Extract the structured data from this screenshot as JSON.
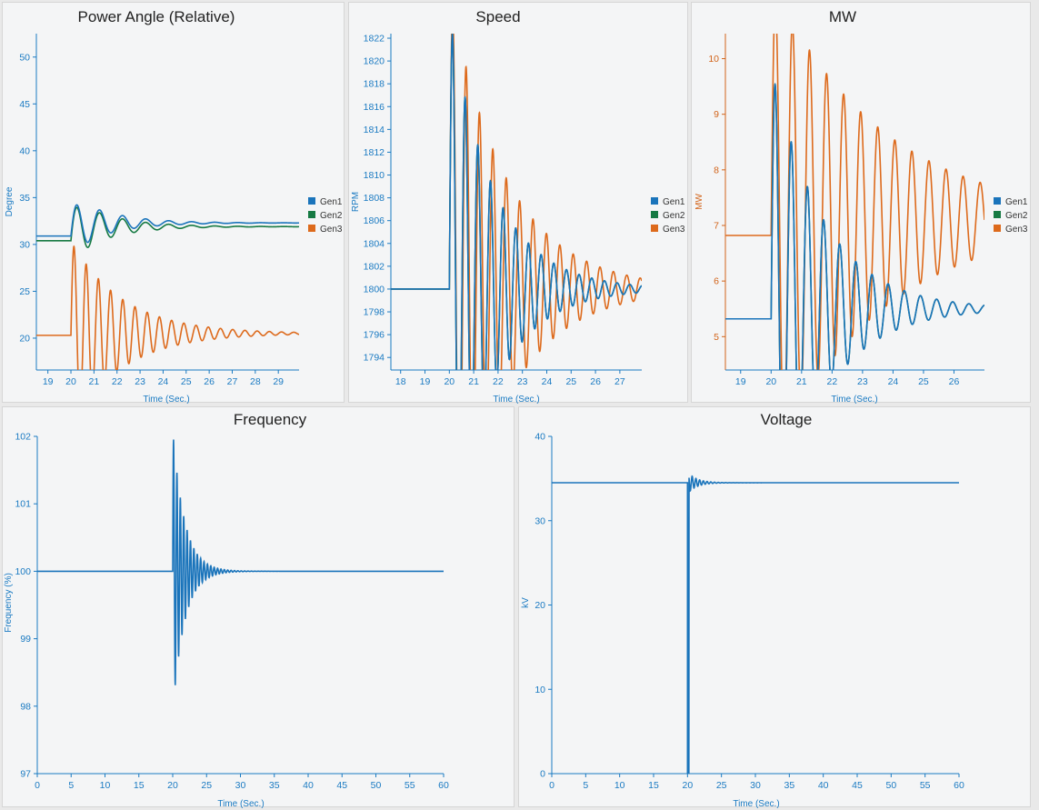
{
  "colors": {
    "gen1": "#1a74bb",
    "gen2": "#167a43",
    "gen3": "#dd6a1c",
    "axis_blue": "#1a7ac2",
    "axis_orange": "#d2641a"
  },
  "charts": {
    "power_angle": {
      "title": "Power Angle (Relative)",
      "ylabel": "Degree",
      "xlabel": "Time (Sec.)"
    },
    "speed": {
      "title": "Speed",
      "ylabel": "RPM",
      "xlabel": "Time (Sec.)"
    },
    "mw": {
      "title": "MW",
      "ylabel": "MW",
      "xlabel": "Time (Sec.)"
    },
    "frequency": {
      "title": "Frequency",
      "ylabel": "Frequency (%)",
      "xlabel": "Time (Sec.)"
    },
    "voltage": {
      "title": "Voltage",
      "ylabel": "kV",
      "xlabel": "Time (Sec.)"
    }
  },
  "chart_data": [
    {
      "id": "power_angle",
      "type": "line",
      "title": "Power Angle (Relative)",
      "xlabel": "Time (Sec.)",
      "ylabel": "Degree",
      "xlim": [
        18.5,
        29.9
      ],
      "ylim": [
        16.6,
        52.5
      ],
      "xticks": [
        19,
        20,
        21,
        22,
        23,
        24,
        25,
        26,
        27,
        28,
        29
      ],
      "yticks": [
        20,
        25,
        30,
        35,
        40,
        45,
        50
      ],
      "legend": [
        "Gen1",
        "Gen2",
        "Gen3"
      ],
      "legend_position": "right",
      "event_time": 20.0,
      "series": [
        {
          "name": "Gen1",
          "pre": 30.9,
          "post": 32.3,
          "amp": 3.0,
          "period": 1.0,
          "decay": 0.6
        },
        {
          "name": "Gen2",
          "pre": 30.4,
          "post": 31.9,
          "amp": 3.2,
          "period": 1.0,
          "decay": 0.6
        },
        {
          "name": "Gen3",
          "pre": 20.3,
          "post": 20.5,
          "amp": 10.0,
          "period": 0.53,
          "decay": 0.45
        }
      ]
    },
    {
      "id": "speed",
      "type": "line",
      "title": "Speed",
      "xlabel": "Time (Sec.)",
      "ylabel": "RPM",
      "xlim": [
        17.6,
        27.9
      ],
      "ylim": [
        1792.9,
        1822.4
      ],
      "xticks": [
        18,
        19,
        20,
        21,
        22,
        23,
        24,
        25,
        26,
        27
      ],
      "yticks": [
        1794,
        1796,
        1798,
        1800,
        1802,
        1804,
        1806,
        1808,
        1810,
        1812,
        1814,
        1816,
        1818,
        1820,
        1822
      ],
      "legend": [
        "Gen1",
        "Gen2",
        "Gen3"
      ],
      "legend_position": "right",
      "event_time": 20.0,
      "series": [
        {
          "name": "Gen1",
          "pre": 1800,
          "post": 1800,
          "amp": 24,
          "period": 0.52,
          "decay": 0.55
        },
        {
          "name": "Gen2",
          "pre": 1800,
          "post": 1800,
          "amp": 24,
          "period": 0.52,
          "decay": 0.55
        },
        {
          "name": "Gen3",
          "pre": 1800,
          "post": 1800,
          "amp": 26,
          "period": 0.55,
          "decay": 0.42
        }
      ]
    },
    {
      "id": "mw",
      "type": "line",
      "title": "MW",
      "xlabel": "Time (Sec.)",
      "ylabel": "MW",
      "xlim": [
        18.5,
        27.0
      ],
      "ylim": [
        4.4,
        10.45
      ],
      "xticks": [
        19,
        20,
        21,
        22,
        23,
        24,
        25,
        26
      ],
      "yticks": [
        5,
        6,
        7,
        8,
        9,
        10
      ],
      "legend": [
        "Gen1",
        "Gen2",
        "Gen3"
      ],
      "legend_position": "right",
      "event_time": 20.0,
      "series": [
        {
          "name": "Gen1",
          "pre": 5.32,
          "post": 5.5,
          "amp": 4.5,
          "period": 0.53,
          "decay": 0.6
        },
        {
          "name": "Gen2",
          "pre": 5.32,
          "post": 5.5,
          "amp": 4.5,
          "period": 0.53,
          "decay": 0.6
        },
        {
          "name": "Gen3",
          "pre": 6.82,
          "post": 7.1,
          "amp": 4.3,
          "period": 0.56,
          "decay": 0.27
        }
      ]
    },
    {
      "id": "frequency",
      "type": "line",
      "title": "Frequency",
      "xlabel": "Time (Sec.)",
      "ylabel": "Frequency (%)",
      "xlim": [
        0,
        60
      ],
      "ylim": [
        97,
        102
      ],
      "xticks": [
        0,
        5,
        10,
        15,
        20,
        25,
        30,
        35,
        40,
        45,
        50,
        55,
        60
      ],
      "yticks": [
        97,
        98,
        99,
        100,
        101,
        102
      ],
      "event_time": 20.0,
      "series": [
        {
          "name": "Frequency",
          "pre": 100,
          "post": 100,
          "amp": 2.1,
          "period": 0.5,
          "decay": 0.58
        }
      ]
    },
    {
      "id": "voltage",
      "type": "line",
      "title": "Voltage",
      "xlabel": "Time (Sec.)",
      "ylabel": "kV",
      "xlim": [
        0,
        60
      ],
      "ylim": [
        0,
        40
      ],
      "xticks": [
        0,
        5,
        10,
        15,
        20,
        25,
        30,
        35,
        40,
        45,
        50,
        55,
        60
      ],
      "yticks": [
        0,
        10,
        20,
        30,
        40
      ],
      "event_time": 20.0,
      "series": [
        {
          "name": "Voltage",
          "pre": 34.5,
          "post": 34.5,
          "dip": 0,
          "fault_duration": 0.2,
          "amp": 1.3,
          "period": 0.55,
          "decay": 0.75
        }
      ]
    }
  ]
}
